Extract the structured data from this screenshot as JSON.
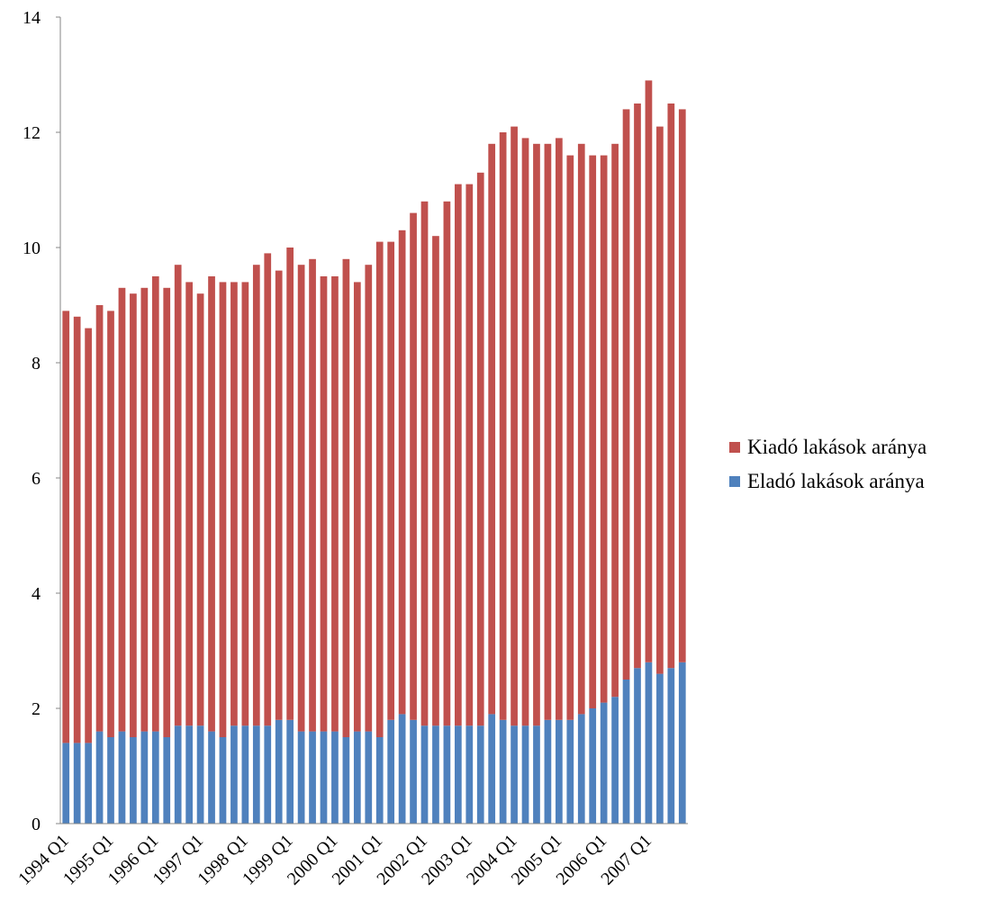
{
  "chart_data": {
    "type": "bar",
    "stacked": true,
    "x": [
      "1994 Q1",
      "1994 Q2",
      "1994 Q3",
      "1994 Q4",
      "1995 Q1",
      "1995 Q2",
      "1995 Q3",
      "1995 Q4",
      "1996 Q1",
      "1996 Q2",
      "1996 Q3",
      "1996 Q4",
      "1997 Q1",
      "1997 Q2",
      "1997 Q3",
      "1997 Q4",
      "1998 Q1",
      "1998 Q2",
      "1998 Q3",
      "1998 Q4",
      "1999 Q1",
      "1999 Q2",
      "1999 Q3",
      "1999 Q4",
      "2000 Q1",
      "2000 Q2",
      "2000 Q3",
      "2000 Q4",
      "2001 Q1",
      "2001 Q2",
      "2001 Q3",
      "2001 Q4",
      "2002 Q1",
      "2002 Q2",
      "2002 Q3",
      "2002 Q4",
      "2003 Q1",
      "2003 Q2",
      "2003 Q3",
      "2003 Q4",
      "2004 Q1",
      "2004 Q2",
      "2004 Q3",
      "2004 Q4",
      "2005 Q1",
      "2005 Q2",
      "2005 Q3",
      "2005 Q4",
      "2006 Q1",
      "2006 Q2",
      "2006 Q3",
      "2006 Q4",
      "2007 Q1",
      "2007 Q2",
      "2007 Q3",
      "2007 Q4"
    ],
    "x_tick_labels": [
      "1994 Q1",
      "1995 Q1",
      "1996 Q1",
      "1997 Q1",
      "1998 Q1",
      "1999 Q1",
      "2000 Q1",
      "2001 Q1",
      "2002 Q1",
      "2003 Q1",
      "2004 Q1",
      "2005 Q1",
      "2006 Q1",
      "2007 Q1"
    ],
    "y_ticks": [
      0,
      2,
      4,
      6,
      8,
      10,
      12,
      14
    ],
    "ylim": [
      0,
      14
    ],
    "grid": false,
    "legend_position": "right",
    "series": [
      {
        "name": "Eladó lakások aránya",
        "color": "#4F81BD",
        "values": [
          1.4,
          1.4,
          1.4,
          1.6,
          1.5,
          1.6,
          1.5,
          1.6,
          1.6,
          1.5,
          1.7,
          1.7,
          1.7,
          1.6,
          1.5,
          1.7,
          1.7,
          1.7,
          1.7,
          1.8,
          1.8,
          1.6,
          1.6,
          1.6,
          1.6,
          1.5,
          1.6,
          1.6,
          1.5,
          1.8,
          1.9,
          1.8,
          1.7,
          1.7,
          1.7,
          1.7,
          1.7,
          1.7,
          1.9,
          1.8,
          1.7,
          1.7,
          1.7,
          1.8,
          1.8,
          1.8,
          1.9,
          2.0,
          2.1,
          2.2,
          2.5,
          2.7,
          2.8,
          2.6,
          2.7,
          2.8
        ]
      },
      {
        "name": "Kiadó lakások aránya",
        "color": "#C0504D",
        "values": [
          7.5,
          7.4,
          7.2,
          7.4,
          7.4,
          7.7,
          7.7,
          7.7,
          7.9,
          7.8,
          8.0,
          7.7,
          7.5,
          7.9,
          7.9,
          7.7,
          7.7,
          8.0,
          8.2,
          7.8,
          8.2,
          8.1,
          8.2,
          7.9,
          7.9,
          8.3,
          7.8,
          8.1,
          8.6,
          8.3,
          8.4,
          8.8,
          9.1,
          8.5,
          9.1,
          9.4,
          9.4,
          9.6,
          9.9,
          10.2,
          10.4,
          10.2,
          10.1,
          10.0,
          10.1,
          9.8,
          9.9,
          9.6,
          9.5,
          9.6,
          9.9,
          9.8,
          10.1,
          9.5,
          9.8,
          9.6
        ]
      }
    ]
  }
}
